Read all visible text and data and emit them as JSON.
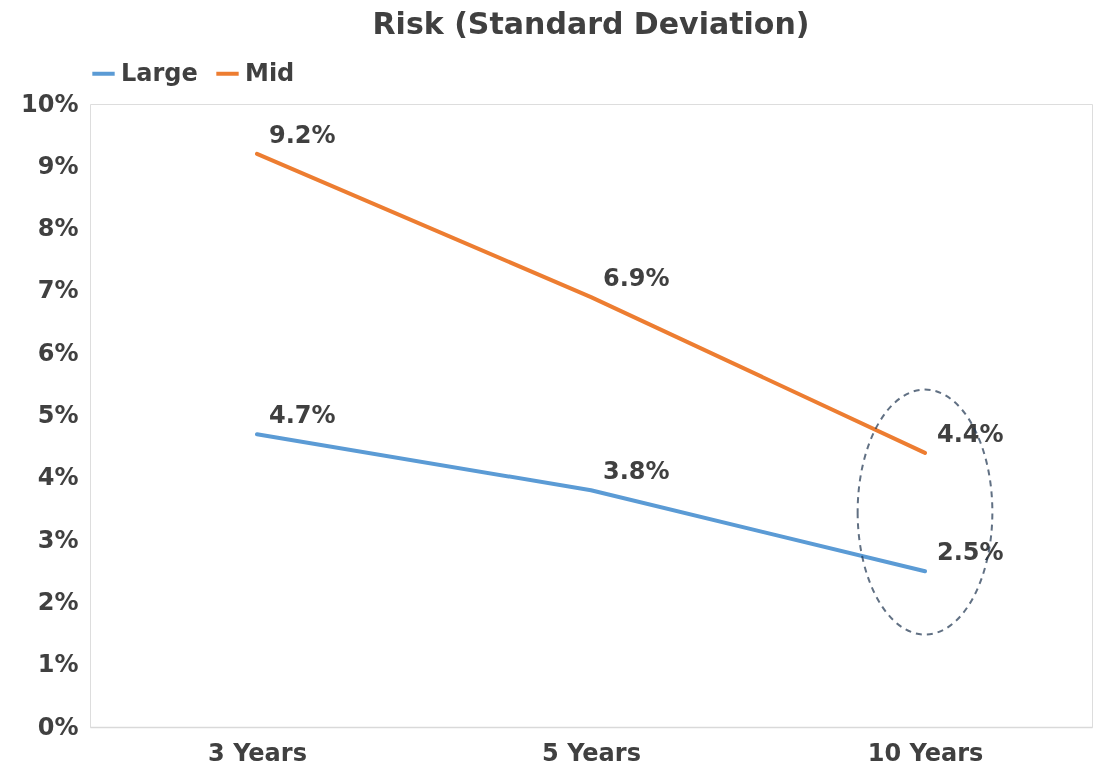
{
  "chart_data": {
    "type": "line",
    "title": "Risk (Standard Deviation)",
    "categories": [
      "3 Years",
      "5 Years",
      "10 Years"
    ],
    "series": [
      {
        "name": "Large",
        "color": "#5b9bd5",
        "values": [
          4.7,
          3.8,
          2.5
        ],
        "value_labels": [
          "4.7%",
          "3.8%",
          "2.5%"
        ]
      },
      {
        "name": "Mid",
        "color": "#ed7d31",
        "values": [
          9.2,
          6.9,
          4.4
        ],
        "value_labels": [
          "9.2%",
          "6.9%",
          "4.4%"
        ]
      }
    ],
    "ylim": [
      0,
      10
    ],
    "yticks": [
      {
        "value": 0,
        "label": "0%"
      },
      {
        "value": 1,
        "label": "1%"
      },
      {
        "value": 2,
        "label": "2%"
      },
      {
        "value": 3,
        "label": "3%"
      },
      {
        "value": 4,
        "label": "4%"
      },
      {
        "value": 5,
        "label": "5%"
      },
      {
        "value": 6,
        "label": "6%"
      },
      {
        "value": 7,
        "label": "7%"
      },
      {
        "value": 8,
        "label": "8%"
      },
      {
        "value": 9,
        "label": "9%"
      },
      {
        "value": 10,
        "label": "10%"
      }
    ],
    "grid": false,
    "legend": "top",
    "marker": "none",
    "line_style": "solid"
  }
}
